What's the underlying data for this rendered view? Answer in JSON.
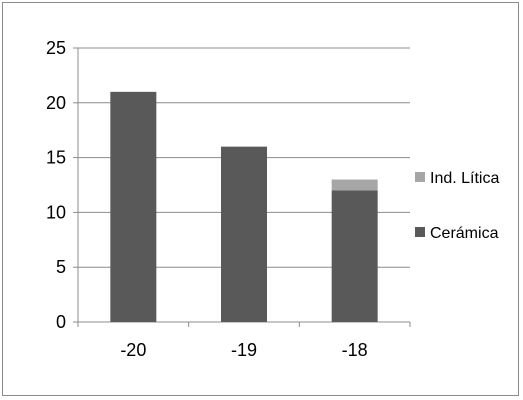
{
  "chart_data": {
    "type": "bar",
    "stacked": true,
    "categories": [
      "-20",
      "-19",
      "-18"
    ],
    "series": [
      {
        "name": "Cerámica",
        "values": [
          21,
          16,
          12
        ],
        "color": "#595959"
      },
      {
        "name": "Ind. Lítica",
        "values": [
          0,
          0,
          1
        ],
        "color": "#a6a6a6"
      }
    ],
    "ylim": [
      0,
      25
    ],
    "yticks": [
      "0",
      "5",
      "10",
      "15",
      "20",
      "25"
    ],
    "grid": true,
    "legend": "right",
    "title": "",
    "xlabel": "",
    "ylabel": ""
  }
}
